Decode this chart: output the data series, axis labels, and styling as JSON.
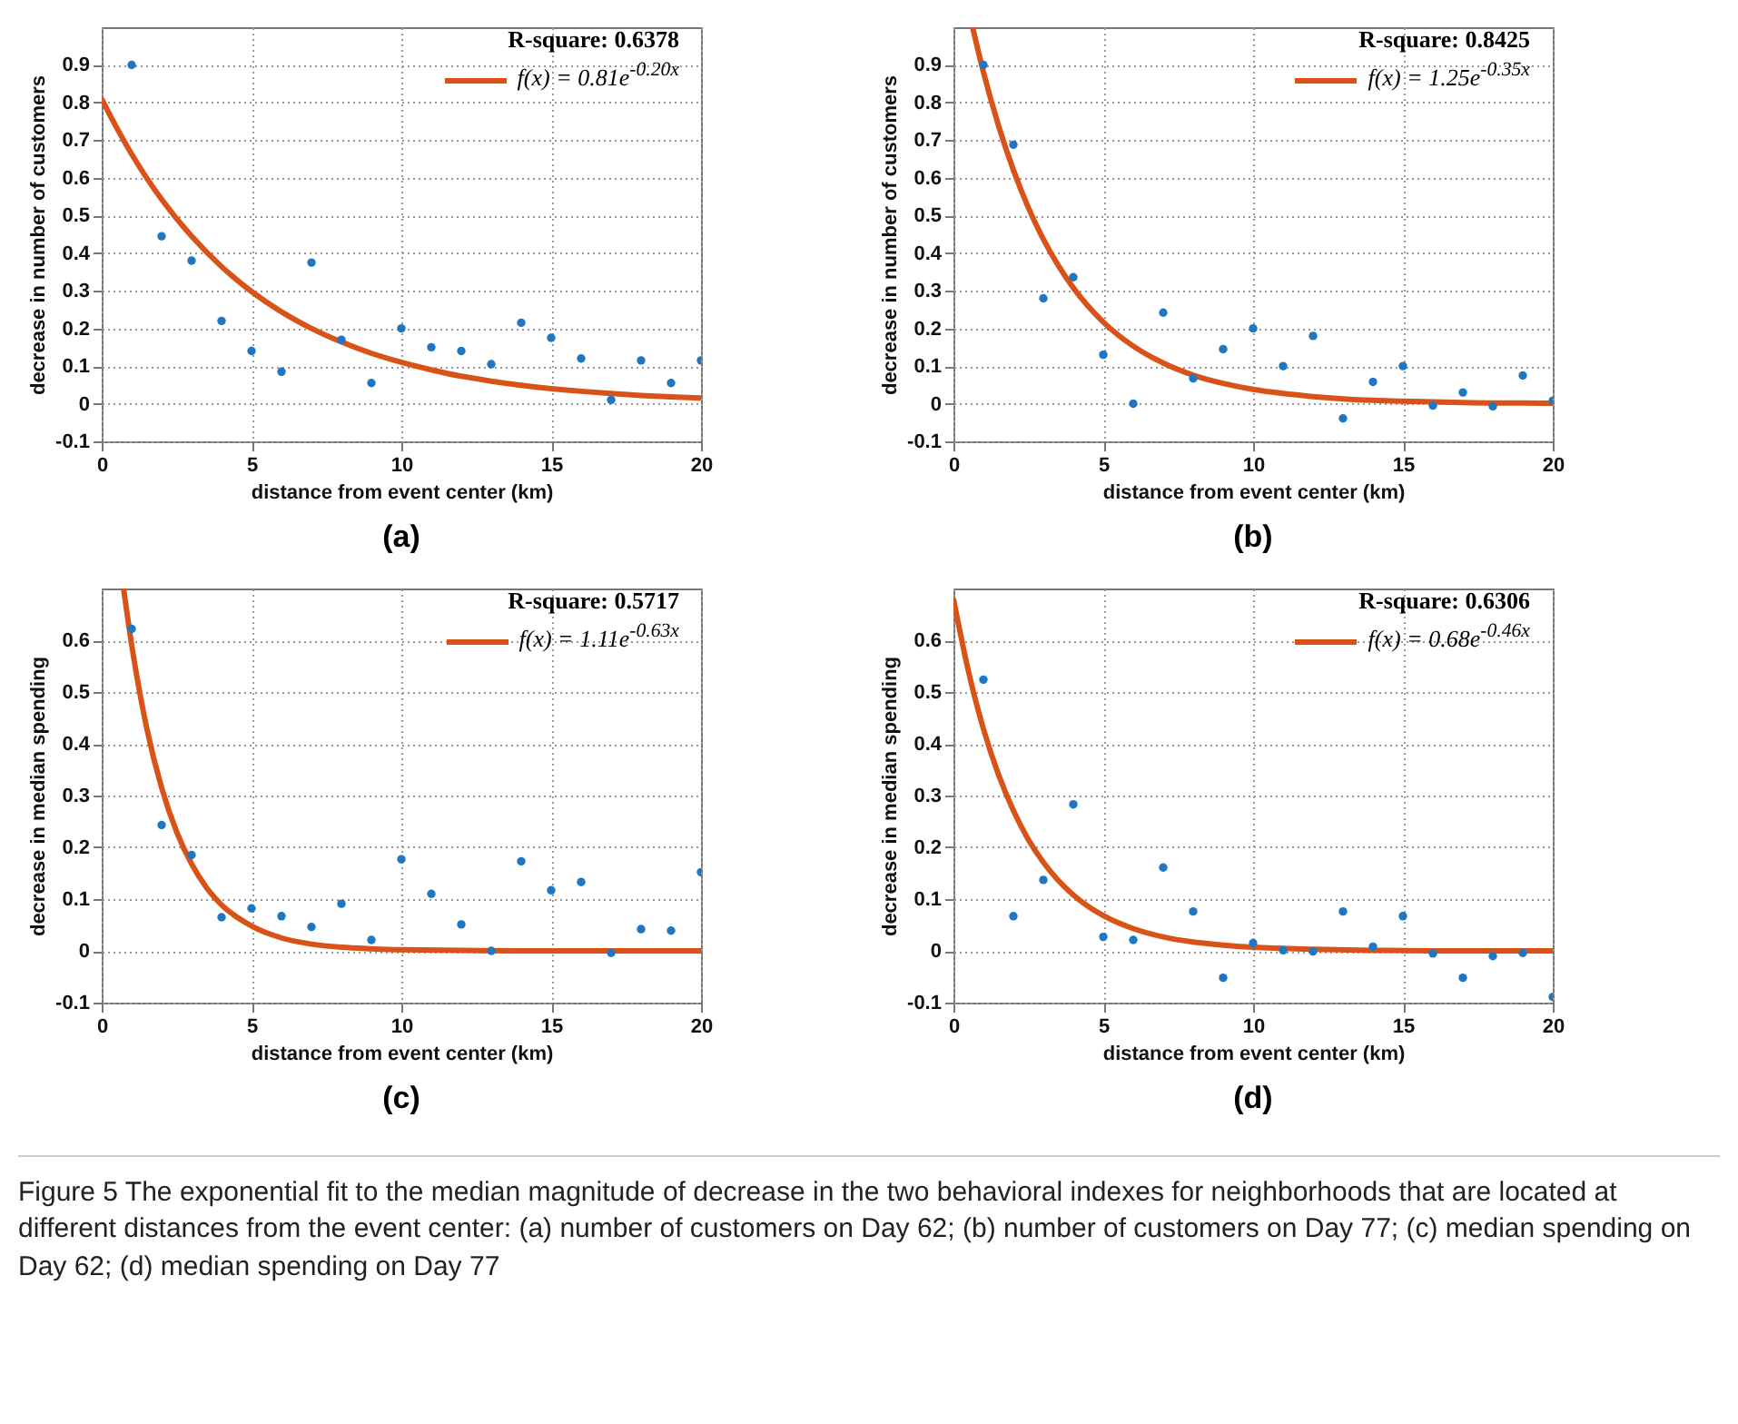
{
  "chart_data": [
    {
      "type": "scatter",
      "title": "(a)",
      "xlabel": "distance from event center (km)",
      "ylabel": "decrease in number of customers",
      "xlim": [
        0,
        20
      ],
      "xticks": [
        0,
        5,
        10,
        15,
        20
      ],
      "ylim": [
        -0.1,
        1.0
      ],
      "yticks": [
        -0.1,
        0,
        0.1,
        0.2,
        0.3,
        0.4,
        0.5,
        0.6,
        0.7,
        0.8,
        0.9
      ],
      "grid": true,
      "legend": "top right",
      "annotations": [
        "R-square: 0.6378",
        "Figure 5  The exponential fit to the median magnitude of decrease in the two behavioral indexes for neighborhoods that are located at different distances from the event center: (a) number of customers on Day 62; (b) number of customers on Day 77; (c) median spending on Day 62; (d) median spending on Day 77"
      ],
      "series": [
        {
          "color": "#1f77c4",
          "marker": "circle",
          "x": [
            1,
            2,
            3,
            4,
            5,
            6,
            7,
            8,
            9,
            10,
            11,
            12,
            13,
            14,
            15,
            16,
            17,
            18,
            19,
            20
          ],
          "values": [
            0.9,
            0.445,
            0.38,
            0.22,
            0.14,
            0.085,
            0.375,
            0.17,
            0.055,
            0.2,
            0.15,
            0.14,
            0.105,
            0.215,
            0.175,
            0.12,
            0.01,
            0.115,
            0.055,
            0.115
          ]
        },
        {
          "type": "line",
          "name": "f(x) = 0.81e$^{-0.20x}$",
          "color": "#d95319",
          "x": [
            0,
            0.5,
            1,
            1.5,
            2,
            3,
            4,
            5,
            6,
            7,
            8,
            9,
            10,
            11,
            12,
            13,
            14,
            15,
            16,
            17,
            18,
            19,
            20
          ],
          "values": [
            0.81,
            0.733,
            0.663,
            0.6,
            0.543,
            0.445,
            0.364,
            0.298,
            0.244,
            0.2,
            0.164,
            0.134,
            0.11,
            0.09,
            0.073,
            0.06,
            0.049,
            0.04,
            0.033,
            0.027,
            0.022,
            0.018,
            0.015
          ]
        }
      ]
    },
    {
      "type": "scatter",
      "title": "(b)",
      "xlabel": "distance from event center (km)",
      "ylabel": "decrease in number of customers",
      "xlim": [
        0,
        20
      ],
      "xticks": [
        0,
        5,
        10,
        15,
        20
      ],
      "ylim": [
        -0.1,
        1.0
      ],
      "yticks": [
        -0.1,
        0,
        0.1,
        0.2,
        0.3,
        0.4,
        0.5,
        0.6,
        0.7,
        0.8,
        0.9
      ],
      "grid": true,
      "legend": "top right",
      "annotations": [
        "R-square: 0.8425"
      ],
      "series": [
        {
          "color": "#1f77c4",
          "marker": "circle",
          "x": [
            1,
            2,
            3,
            4,
            5,
            6,
            7,
            8,
            9,
            10,
            11,
            12,
            13,
            14,
            15,
            16,
            17,
            18,
            19,
            20
          ],
          "values": [
            0.9,
            0.688,
            0.28,
            0.336,
            0.13,
            0.0,
            0.242,
            0.067,
            0.145,
            0.2,
            0.1,
            0.18,
            -0.039,
            0.058,
            0.1,
            -0.005,
            0.03,
            -0.007,
            0.075,
            0.008
          ]
        },
        {
          "type": "line",
          "name": "f(x) = 1.25e$^{-0.35x}$",
          "color": "#d95319",
          "x": [
            0.64,
            1,
            1.5,
            2,
            2.5,
            3,
            3.5,
            4,
            5,
            6,
            7,
            8,
            9,
            10,
            11,
            12,
            13,
            14,
            15,
            16,
            17,
            18,
            19,
            20
          ],
          "values": [
            1.0,
            0.881,
            0.74,
            0.621,
            0.521,
            0.437,
            0.367,
            0.308,
            0.217,
            0.153,
            0.108,
            0.076,
            0.054,
            0.038,
            0.027,
            0.019,
            0.013,
            0.009,
            0.007,
            0.005,
            0.003,
            0.002,
            0.002,
            0.001
          ]
        }
      ]
    },
    {
      "type": "scatter",
      "title": "(c)",
      "xlabel": "distance from event center (km)",
      "ylabel": "decrease in median spending",
      "xlim": [
        0,
        20
      ],
      "xticks": [
        0,
        5,
        10,
        15,
        20
      ],
      "ylim": [
        -0.1,
        0.7
      ],
      "yticks": [
        -0.1,
        0,
        0.1,
        0.2,
        0.3,
        0.4,
        0.5,
        0.6
      ],
      "grid": true,
      "legend": "top right",
      "annotations": [
        "R-square: 0.5717"
      ],
      "series": [
        {
          "color": "#1f77c4",
          "marker": "circle",
          "x": [
            1,
            2,
            3,
            4,
            5,
            6,
            7,
            8,
            9,
            10,
            11,
            12,
            13,
            14,
            15,
            16,
            17,
            18,
            19,
            20
          ],
          "values": [
            0.622,
            0.243,
            0.185,
            0.065,
            0.082,
            0.067,
            0.046,
            0.091,
            0.021,
            0.177,
            0.11,
            0.051,
            0.0,
            0.173,
            0.117,
            0.133,
            -0.004,
            0.042,
            0.039,
            0.152
          ]
        },
        {
          "type": "line",
          "name": "f(x) = 1.11e$^{-0.63x}$",
          "color": "#d95319",
          "x": [
            0.73,
            1,
            1.5,
            2,
            2.5,
            3,
            3.5,
            4,
            5,
            6,
            7,
            8,
            9,
            10,
            12,
            14,
            20
          ],
          "values": [
            0.7,
            0.591,
            0.431,
            0.315,
            0.23,
            0.168,
            0.122,
            0.089,
            0.048,
            0.025,
            0.013,
            0.007,
            0.004,
            0.002,
            0.001,
            0.0,
            0.0
          ]
        }
      ]
    },
    {
      "type": "scatter",
      "title": "(d)",
      "xlabel": "distance from event center (km)",
      "ylabel": "decrease in median spending",
      "xlim": [
        0,
        20
      ],
      "xticks": [
        0,
        5,
        10,
        15,
        20
      ],
      "ylim": [
        -0.1,
        0.7
      ],
      "yticks": [
        -0.1,
        0,
        0.1,
        0.2,
        0.3,
        0.4,
        0.5,
        0.6
      ],
      "grid": true,
      "legend": "top right",
      "annotations": [
        "R-square: 0.6306"
      ],
      "series": [
        {
          "color": "#1f77c4",
          "marker": "circle",
          "x": [
            1,
            2,
            3,
            4,
            5,
            6,
            7,
            8,
            9,
            10,
            11,
            12,
            13,
            14,
            15,
            16,
            17,
            18,
            19,
            20
          ],
          "values": [
            0.524,
            0.067,
            0.137,
            0.283,
            0.027,
            0.021,
            0.161,
            0.076,
            -0.052,
            0.015,
            0.001,
            -0.001,
            0.076,
            0.008,
            0.067,
            -0.005,
            -0.052,
            -0.01,
            -0.004,
            -0.089
          ]
        },
        {
          "type": "line",
          "name": "f(x) = 0.68e$^{-0.46x}$",
          "color": "#d95319",
          "x": [
            0,
            0.5,
            1,
            1.5,
            2,
            2.5,
            3,
            3.5,
            4,
            5,
            6,
            7,
            8,
            9,
            10,
            12,
            14,
            16,
            20
          ],
          "values": [
            0.68,
            0.54,
            0.429,
            0.341,
            0.271,
            0.215,
            0.171,
            0.136,
            0.108,
            0.068,
            0.043,
            0.027,
            0.017,
            0.011,
            0.007,
            0.003,
            0.001,
            0.0,
            0.0
          ]
        }
      ]
    }
  ]
}
